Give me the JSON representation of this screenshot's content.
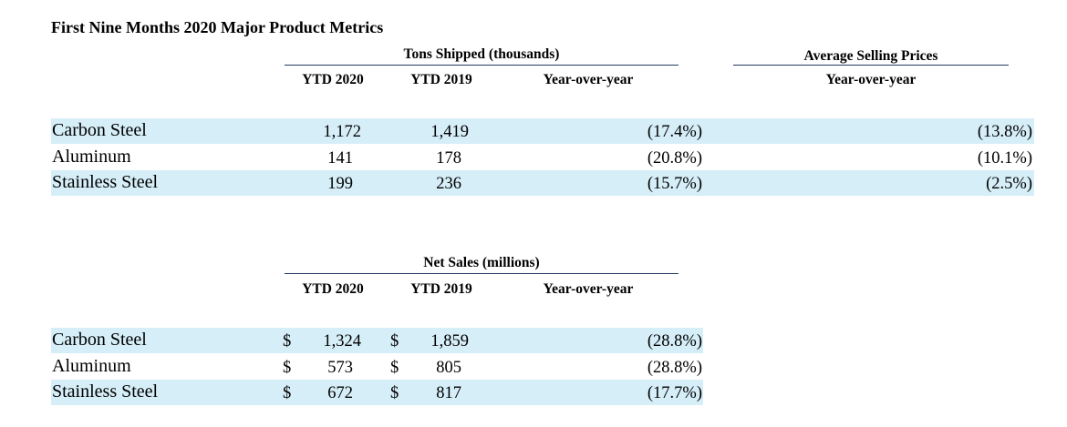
{
  "title": "First Nine Months 2020 Major Product Metrics",
  "tons": {
    "group_header": "Tons Shipped (thousands)",
    "col_ytd2020": "YTD 2020",
    "col_ytd2019": "YTD 2019",
    "col_yoy": "Year-over-year",
    "asp_group_header": "Average Selling Prices",
    "asp_col_yoy": "Year-over-year",
    "rows": [
      {
        "product": "Carbon Steel",
        "ytd2020": "1,172",
        "ytd2019": "1,419",
        "yoy": "(17.4%)",
        "asp_yoy": "(13.8%)"
      },
      {
        "product": "Aluminum",
        "ytd2020": "141",
        "ytd2019": "178",
        "yoy": "(20.8%)",
        "asp_yoy": "(10.1%)"
      },
      {
        "product": "Stainless Steel",
        "ytd2020": "199",
        "ytd2019": "236",
        "yoy": "(15.7%)",
        "asp_yoy": "(2.5%)"
      }
    ]
  },
  "sales": {
    "group_header": "Net Sales (millions)",
    "col_ytd2020": "YTD 2020",
    "col_ytd2019": "YTD 2019",
    "col_yoy": "Year-over-year",
    "currency": "$",
    "rows": [
      {
        "product": "Carbon Steel",
        "ytd2020": "1,324",
        "ytd2019": "1,859",
        "yoy": "(28.8%)"
      },
      {
        "product": "Aluminum",
        "ytd2020": "573",
        "ytd2019": "805",
        "yoy": "(28.8%)"
      },
      {
        "product": "Stainless Steel",
        "ytd2020": "672",
        "ytd2019": "817",
        "yoy": "(17.7%)"
      }
    ]
  },
  "colors": {
    "band": "#d6eef8",
    "rule": "#1f3a5f"
  }
}
